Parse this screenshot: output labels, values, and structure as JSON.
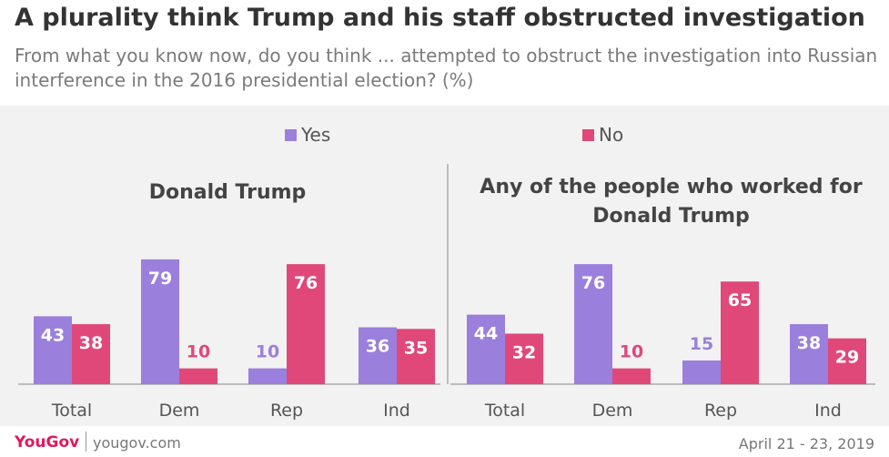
{
  "header": {
    "title": "A plurality think Trump and his staff obstructed investigation",
    "subtitle": "From what you know now, do you think ... attempted to obstruct the investigation into Russian interference in the 2016 presidential election? (%)"
  },
  "legend": {
    "yes": "Yes",
    "no": "No"
  },
  "colors": {
    "yes": "#9b7fdc",
    "no": "#e0487a",
    "background": "#f2f2f2"
  },
  "footer": {
    "logo": "YouGov",
    "site": "yougov.com",
    "date": "April 21 - 23, 2019"
  },
  "chart_data": [
    {
      "type": "bar",
      "title": "Donald Trump",
      "categories": [
        "Total",
        "Dem",
        "Rep",
        "Ind"
      ],
      "series": [
        {
          "name": "Yes",
          "values": [
            43,
            79,
            10,
            36
          ]
        },
        {
          "name": "No",
          "values": [
            38,
            10,
            76,
            35
          ]
        }
      ],
      "ylim": [
        0,
        80
      ],
      "grid": false,
      "legend": "top-center"
    },
    {
      "type": "bar",
      "title": "Any of the people who worked for Donald Trump",
      "categories": [
        "Total",
        "Dem",
        "Rep",
        "Ind"
      ],
      "series": [
        {
          "name": "Yes",
          "values": [
            44,
            76,
            15,
            38
          ]
        },
        {
          "name": "No",
          "values": [
            32,
            10,
            65,
            29
          ]
        }
      ],
      "ylim": [
        0,
        80
      ],
      "grid": false,
      "legend": "top-center"
    }
  ]
}
